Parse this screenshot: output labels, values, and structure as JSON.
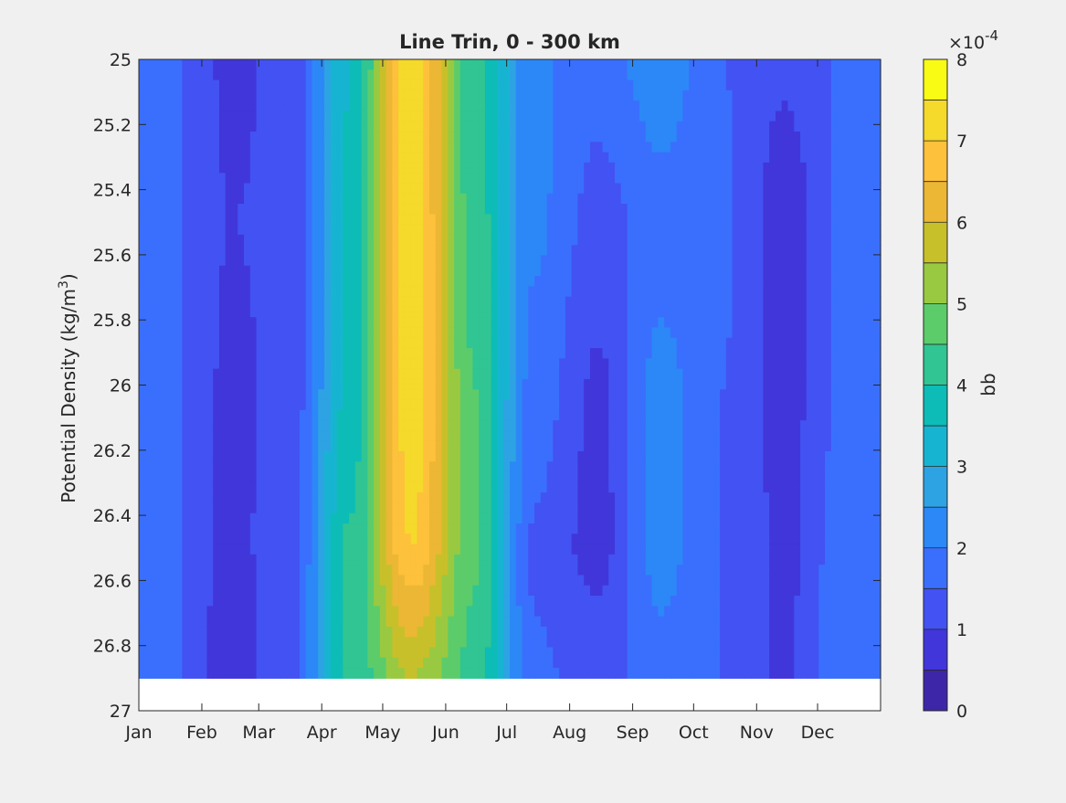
{
  "chart_data": {
    "type": "heatmap",
    "subtype": "filled-contour",
    "title": "Line Trin, 0 - 300 km",
    "xlabel": "",
    "ylabel": "Potential Density (kg/m",
    "ylabel_sup": "3",
    "ylabel_close": ")",
    "x_ticks": [
      "Jan",
      "Feb",
      "Mar",
      "Apr",
      "May",
      "Jun",
      "Jul",
      "Aug",
      "Sep",
      "Oct",
      "Nov",
      "Dec"
    ],
    "x_tick_values": [
      1,
      32,
      60,
      91,
      121,
      152,
      182,
      213,
      244,
      274,
      305,
      335
    ],
    "xlim": [
      1,
      366
    ],
    "y_ticks": [
      "25",
      "25.2",
      "25.4",
      "25.6",
      "25.8",
      "26",
      "26.2",
      "26.4",
      "26.6",
      "26.8",
      "27"
    ],
    "ylim": [
      25,
      27
    ],
    "y_reversed": true,
    "data_ylim": [
      25,
      26.9
    ],
    "colorbar": {
      "label": "bb",
      "multiplier": "×10",
      "exponent": "-4",
      "ticks": [
        "0",
        "1",
        "2",
        "3",
        "4",
        "5",
        "6",
        "7",
        "8"
      ],
      "levels": [
        0,
        0.5,
        1,
        1.5,
        2,
        2.5,
        3,
        3.5,
        4,
        4.5,
        5,
        5.5,
        6,
        6.5,
        7,
        7.5,
        8
      ],
      "colors": [
        "#3e26a8",
        "#4136d9",
        "#4352f3",
        "#3a6ffe",
        "#2c88f6",
        "#2da3e4",
        "#17b4d2",
        "#0dbcb6",
        "#30c592",
        "#5ccc6a",
        "#99c941",
        "#c8c02a",
        "#ecb734",
        "#fdc13b",
        "#f5d92b",
        "#f9fb15"
      ]
    },
    "month_centers": [
      15,
      46,
      74,
      105,
      135,
      166,
      196,
      227,
      258,
      288,
      319,
      349
    ],
    "density_levels": [
      25.0,
      25.5,
      26.0,
      26.5,
      26.9
    ],
    "values_e4": [
      [
        1.6,
        1.6,
        1.6,
        1.6,
        1.6
      ],
      [
        0.9,
        1.0,
        0.9,
        0.9,
        0.7
      ],
      [
        1.1,
        1.1,
        1.1,
        1.2,
        1.3
      ],
      [
        3.5,
        3.6,
        3.6,
        4.1,
        4.1
      ],
      [
        7.3,
        7.3,
        7.4,
        7.0,
        5.5
      ],
      [
        4.1,
        4.3,
        4.5,
        4.6,
        4.3
      ],
      [
        2.1,
        2.1,
        1.8,
        1.4,
        1.6
      ],
      [
        1.7,
        1.3,
        0.9,
        0.8,
        1.3
      ],
      [
        2.4,
        1.7,
        2.2,
        2.2,
        1.8
      ],
      [
        1.5,
        1.6,
        1.5,
        1.5,
        1.5
      ],
      [
        1.1,
        0.7,
        0.8,
        0.9,
        0.9
      ],
      [
        1.6,
        1.6,
        1.6,
        1.8,
        2.0
      ]
    ]
  }
}
